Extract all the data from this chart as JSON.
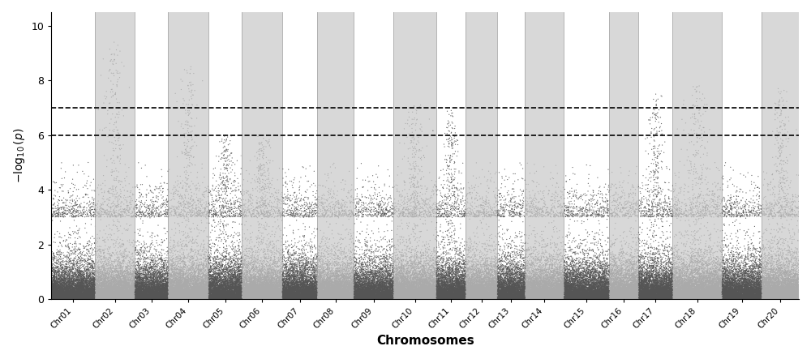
{
  "title": "",
  "xlabel": "Chromosomes",
  "ylabel": "$-\\log_{10}(p)$",
  "chromosomes": [
    "Chr01",
    "Chr02",
    "Chr03",
    "Chr04",
    "Chr05",
    "Chr06",
    "Chr07",
    "Chr08",
    "Chr09",
    "Chr10",
    "Chr11",
    "Chr12",
    "Chr13",
    "Chr14",
    "Chr15",
    "Chr16",
    "Chr17",
    "Chr18",
    "Chr19",
    "Chr20"
  ],
  "n_chrs": 20,
  "threshold1": 7.0,
  "threshold2": 6.0,
  "ylim": [
    0,
    10.5
  ],
  "yticks": [
    0,
    2,
    4,
    6,
    8,
    10
  ],
  "color_dark": "#555555",
  "color_light": "#aaaaaa",
  "bg_color_white": "#ffffff",
  "bg_color_gray": "#d8d8d8",
  "point_size": 0.8,
  "point_alpha": 0.9,
  "figsize": [
    10.0,
    4.43
  ],
  "dpi": 100,
  "chr_sizes": [
    55,
    50,
    42,
    51,
    42,
    51,
    44,
    46,
    50,
    54,
    37,
    40,
    35,
    49,
    57,
    37,
    43,
    62,
    50,
    47
  ],
  "seed": 42,
  "n_snps_per_chr": [
    8000,
    7000,
    6000,
    7500,
    6500,
    7500,
    6500,
    6800,
    7000,
    8000,
    5500,
    6000,
    5000,
    7000,
    8000,
    5500,
    6500,
    9000,
    7000,
    6800
  ],
  "background_color": "#ffffff",
  "spine_color": "#000000",
  "vline_color": "#aaaaaa"
}
